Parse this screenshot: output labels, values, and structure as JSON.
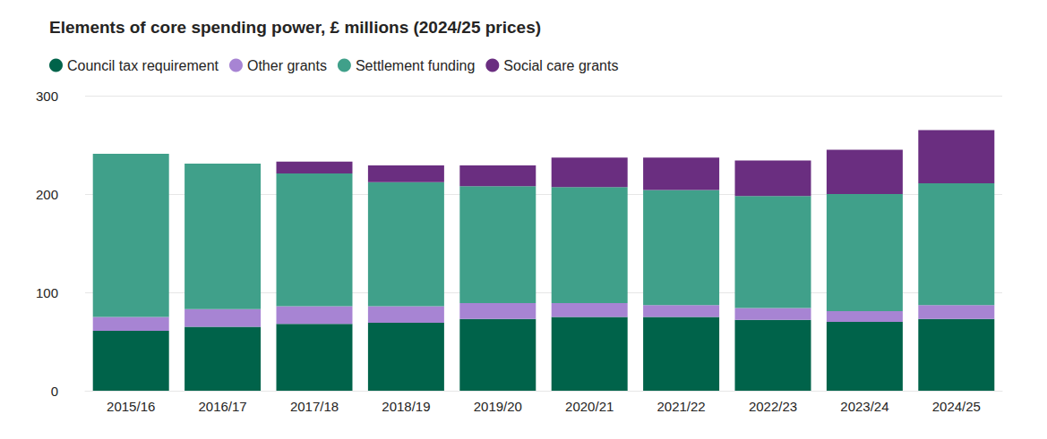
{
  "chart_data": {
    "type": "bar",
    "title": "Elements of core spending power, £ millions (2024/25 prices)",
    "stacked": true,
    "grid": true,
    "legend": "top-left",
    "categories": [
      "2015/16",
      "2016/17",
      "2017/18",
      "2018/19",
      "2019/20",
      "2020/21",
      "2021/22",
      "2022/23",
      "2023/24",
      "2024/25"
    ],
    "series": [
      {
        "name": "Council tax requirement",
        "color": "#00634a",
        "values": [
          61,
          65,
          68,
          69,
          73,
          75,
          75,
          72,
          70,
          73
        ]
      },
      {
        "name": "Other grants",
        "color": "#a784d3",
        "values": [
          14,
          18,
          18,
          17,
          16,
          14,
          12,
          12,
          11,
          14
        ]
      },
      {
        "name": "Settlement funding",
        "color": "#40a08a",
        "values": [
          166,
          148,
          135,
          126,
          119,
          118,
          117,
          114,
          119,
          124
        ]
      },
      {
        "name": "Social care grants",
        "color": "#6a2e80",
        "values": [
          0,
          0,
          12,
          17,
          21,
          30,
          33,
          36,
          45,
          54
        ]
      }
    ],
    "ylim": [
      0,
      300
    ],
    "yticks": [
      0,
      100,
      200,
      300
    ]
  }
}
